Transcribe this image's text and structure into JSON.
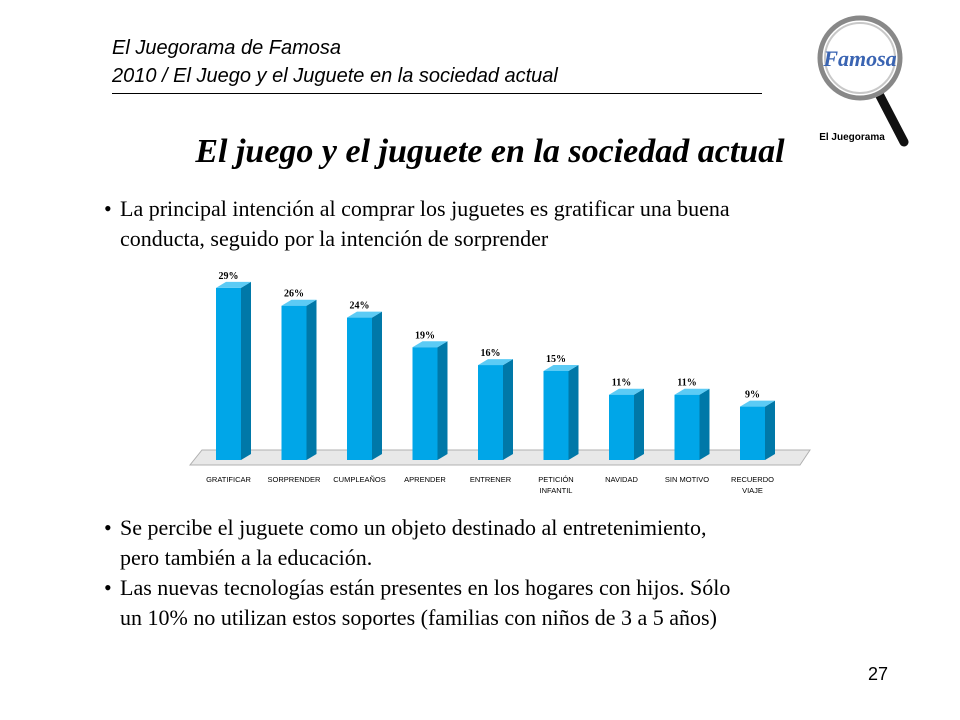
{
  "header": {
    "line1": "El Juegorama de Famosa",
    "line2": "2010 / El Juego y el Juguete en la sociedad actual"
  },
  "logo": {
    "brand": "Famosa",
    "caption": "El Juegorama"
  },
  "title": "El juego y el juguete en la sociedad actual",
  "bullets_top": [
    {
      "line1": "La principal intención al comprar los juguetes es gratificar una buena",
      "line2": "conducta, seguido por la intención de sorprender"
    }
  ],
  "bullets_bottom": [
    {
      "line1": "Se percibe el juguete como un objeto destinado al entretenimiento,",
      "line2": "pero también a la educación."
    },
    {
      "line1": "Las nuevas tecnologías están presentes en los hogares con hijos. Sólo",
      "line2": "un 10% no utilizan estos soportes (familias con niños de 3 a 5 años)"
    }
  ],
  "chart_data": {
    "type": "bar",
    "categories": [
      [
        "GRATIFICAR"
      ],
      [
        "SORPRENDER"
      ],
      [
        "CUMPLEAÑOS"
      ],
      [
        "APRENDER"
      ],
      [
        "ENTRENER"
      ],
      [
        "PETICIÓN",
        "INFANTIL"
      ],
      [
        "NAVIDAD"
      ],
      [
        "SIN MOTIVO"
      ],
      [
        "RECUERDO",
        "VIAJE"
      ]
    ],
    "values": [
      29,
      26,
      24,
      19,
      16,
      15,
      11,
      11,
      9
    ],
    "labels": [
      "29%",
      "26%",
      "24%",
      "19%",
      "16%",
      "15%",
      "11%",
      "11%",
      "9%"
    ],
    "unit": "%",
    "ylim": [
      0,
      30
    ],
    "style": "3d",
    "colors": {
      "bar_front": "#00A6E8",
      "bar_side": "#0078A8",
      "bar_top": "#5CCBF5",
      "floor": "#E8E8E8"
    }
  },
  "page_number": "27"
}
